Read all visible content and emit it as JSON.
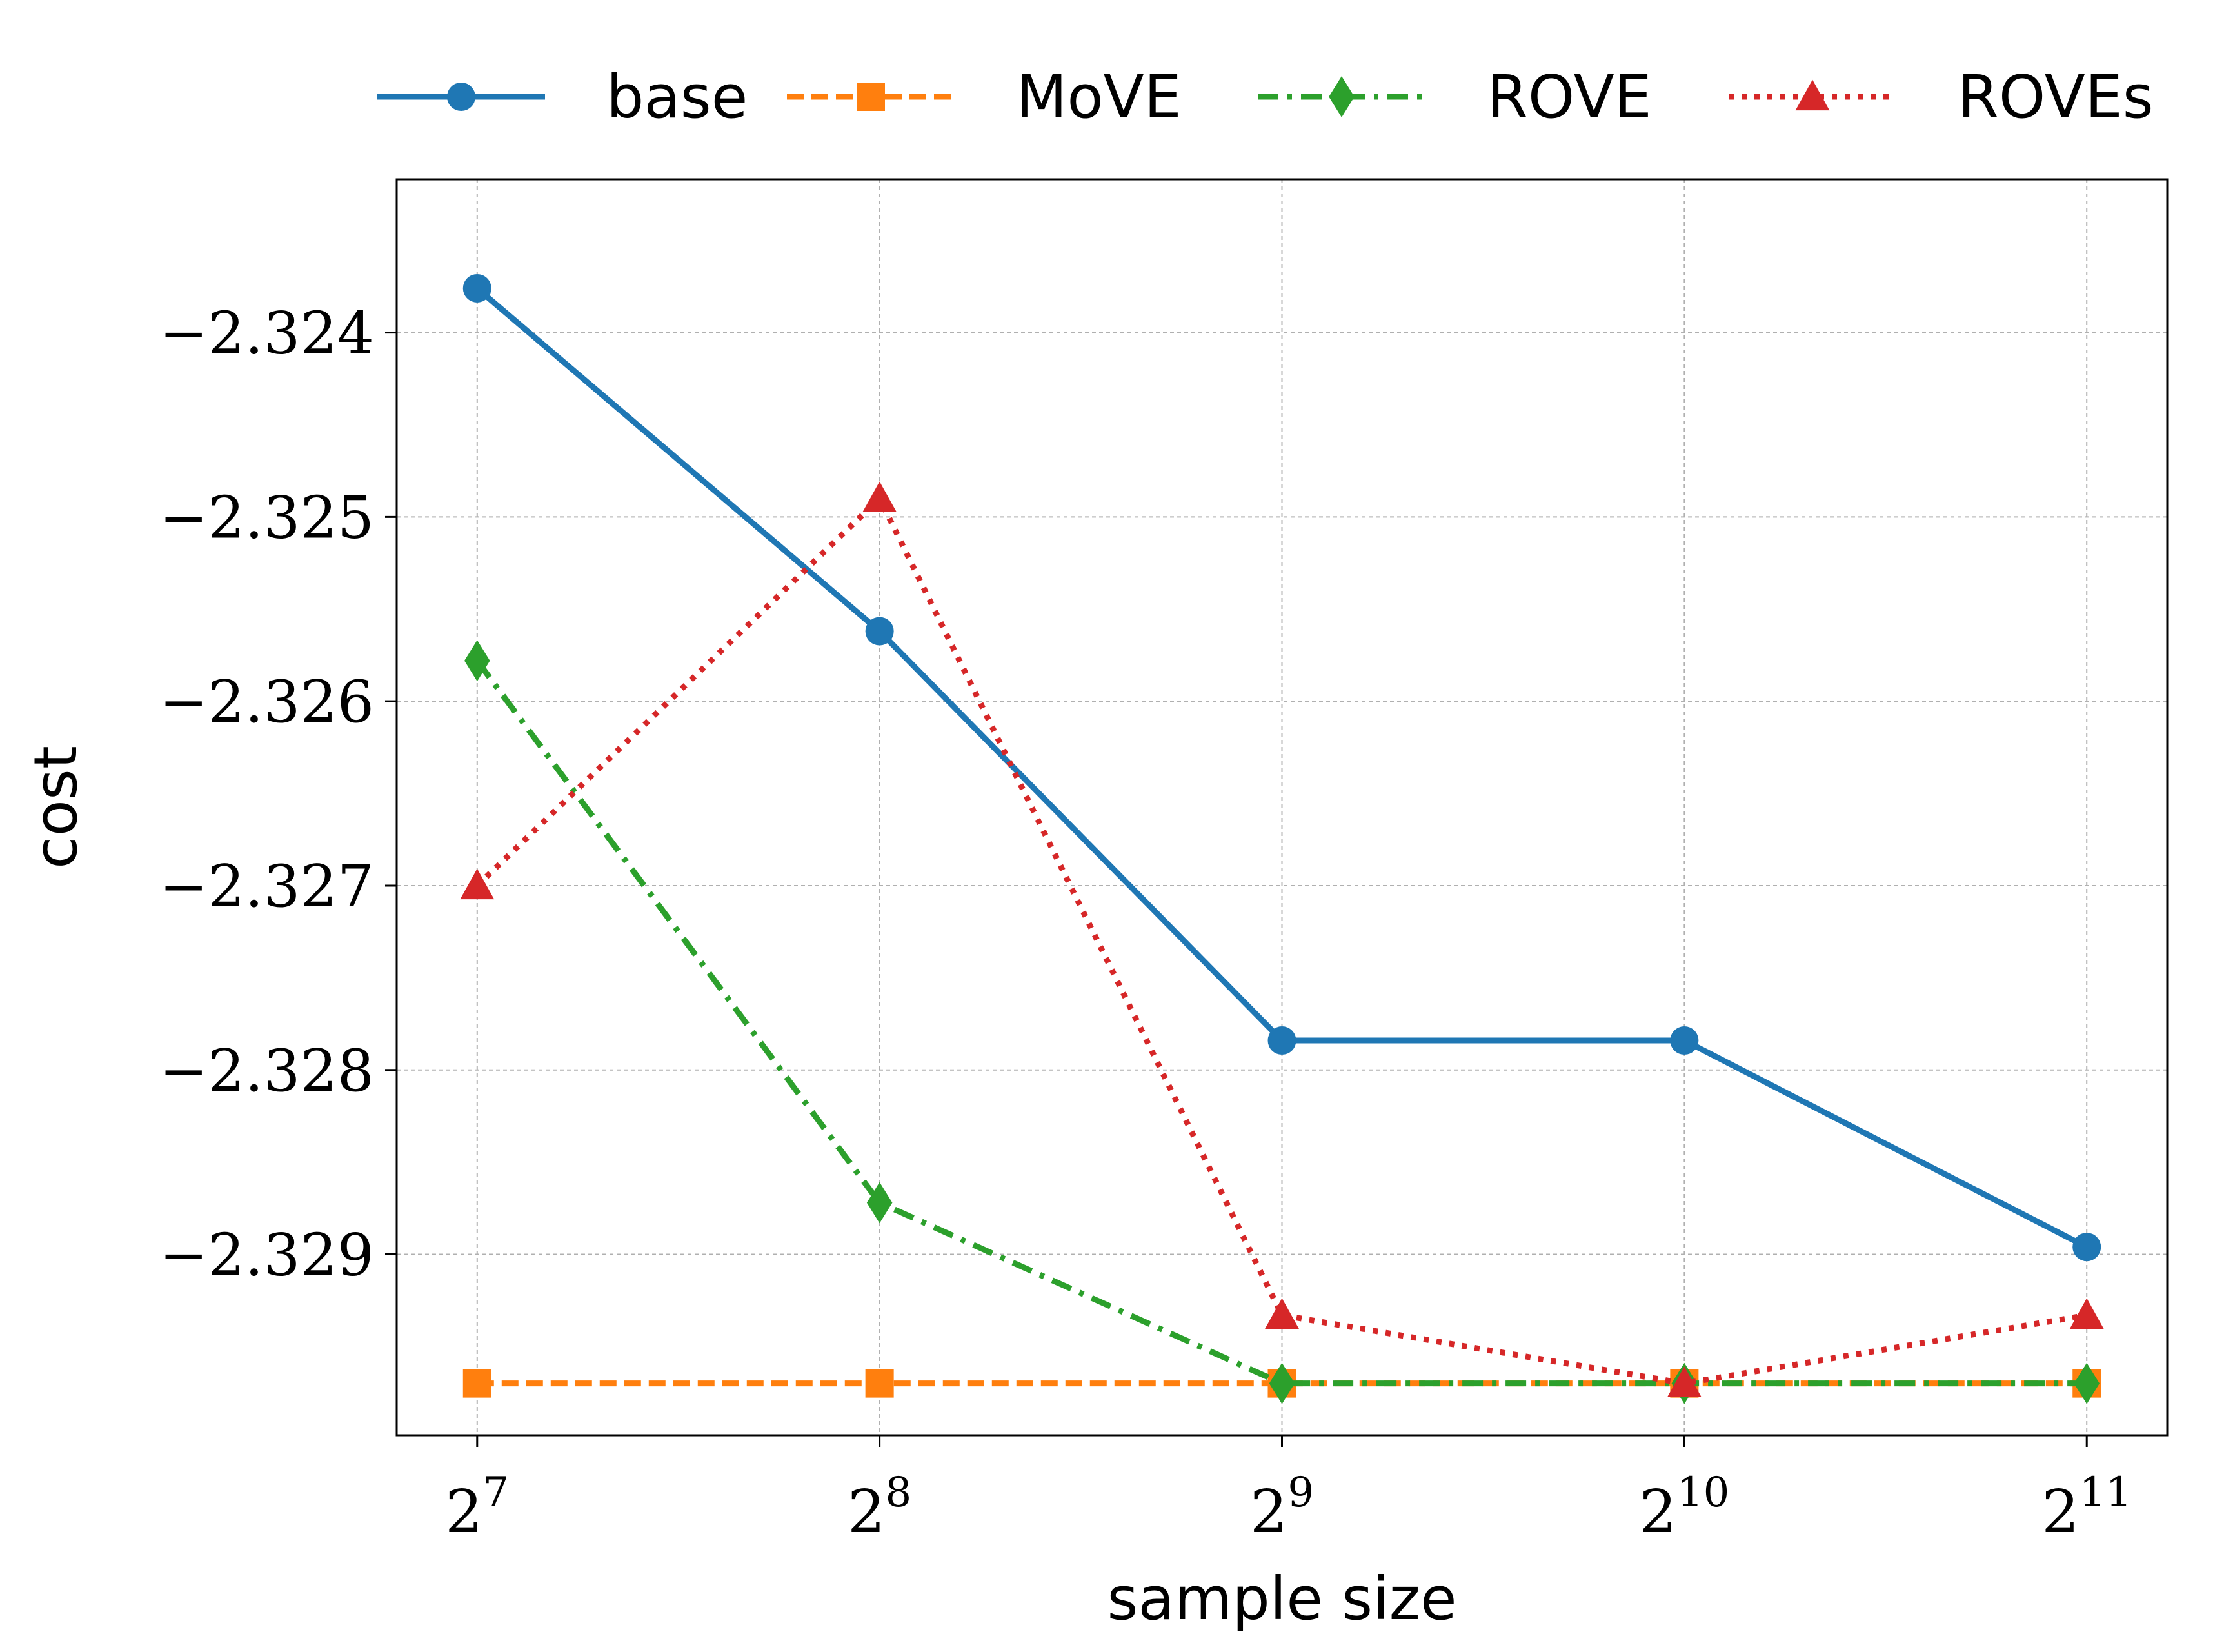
{
  "chart_data": {
    "type": "line",
    "title": "",
    "xlabel": "sample size",
    "ylabel": "cost",
    "x": [
      128,
      256,
      512,
      1024,
      2048
    ],
    "x_tick_labels": [
      {
        "base": "2",
        "exp": "7"
      },
      {
        "base": "2",
        "exp": "8"
      },
      {
        "base": "2",
        "exp": "9"
      },
      {
        "base": "2",
        "exp": "10"
      },
      {
        "base": "2",
        "exp": "11"
      }
    ],
    "x_scale": "log2",
    "y_ticks": [
      -2.324,
      -2.325,
      -2.326,
      -2.327,
      -2.328,
      -2.329
    ],
    "y_tick_labels": [
      "−2.324",
      "−2.325",
      "−2.326",
      "−2.327",
      "−2.328",
      "−2.329"
    ],
    "ylim": [
      -2.3297,
      -2.32345
    ],
    "grid": true,
    "legend_placement": "top, outside plot",
    "series": [
      {
        "name": "base",
        "color": "#1f77b4",
        "line_style": "solid",
        "marker": "circle",
        "values": [
          -2.32376,
          -2.32562,
          -2.32784,
          -2.32784,
          -2.32896
        ]
      },
      {
        "name": "MoVE",
        "color": "#ff7f0e",
        "line_style": "dashed",
        "marker": "square",
        "values": [
          -2.3297,
          -2.3297,
          -2.3297,
          -2.3297,
          -2.3297
        ]
      },
      {
        "name": "ROVE",
        "color": "#2ca02c",
        "line_style": "dash-dot",
        "marker": "diamond",
        "values": [
          -2.32578,
          -2.32872,
          -2.3297,
          -2.3297,
          -2.3297
        ]
      },
      {
        "name": "ROVEs",
        "color": "#d62728",
        "line_style": "dotted",
        "marker": "triangle",
        "values": [
          -2.327,
          -2.3249,
          -2.32933,
          -2.3297,
          -2.32933
        ]
      }
    ]
  }
}
